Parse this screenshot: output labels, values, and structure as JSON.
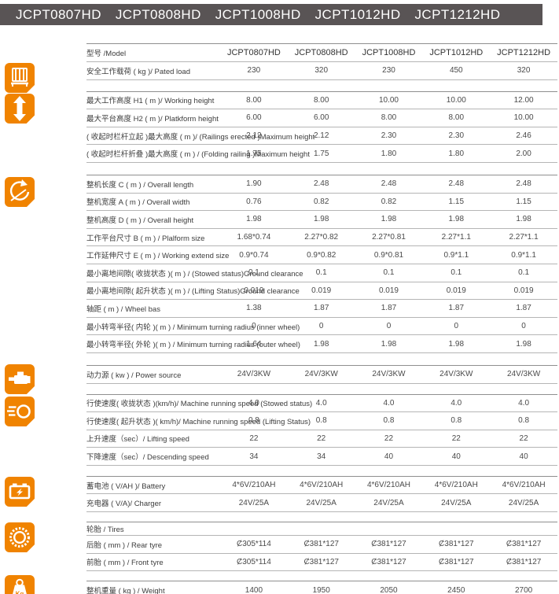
{
  "colors": {
    "accent_orange": "#F08300",
    "topbar_bg": "#595455",
    "line_gray": "#b5b5b5"
  },
  "top_bar": {
    "models": [
      "JCPT0807HD",
      "JCPT0808HD",
      "JCPT1008HD",
      "JCPT1012HD",
      "JCPT1212HD"
    ]
  },
  "table": {
    "sections": [
      {
        "icon": "platform-load-icon",
        "rows": [
          {
            "kind": "model",
            "label": "型号 /Model",
            "values": [
              "JCPT0807HD",
              "JCPT0808HD",
              "JCPT1008HD",
              "JCPT1012HD",
              "JCPT1212HD"
            ]
          },
          {
            "label": "安全工作载荷 ( kg )/ Pated load",
            "values": [
              "230",
              "320",
              "230",
              "450",
              "320"
            ]
          }
        ]
      },
      {
        "icon": "height-range-icon",
        "rows": [
          {
            "label": "最大工作高度 H1 ( m )/ Working height",
            "values": [
              "8.00",
              "8.00",
              "10.00",
              "10.00",
              "12.00"
            ]
          },
          {
            "label": "最大平台高度 H2 ( m )/ Platkform height",
            "values": [
              "6.00",
              "6.00",
              "8.00",
              "8.00",
              "10.00"
            ]
          },
          {
            "label": "( 收起时栏杆立起 )最大高度 ( m )/ (Railings erected )Maximum height",
            "values": [
              "2.12",
              "2.12",
              "2.30",
              "2.30",
              "2.46"
            ]
          },
          {
            "label": "( 收起时栏杆折叠 )最大高度 ( m ) / (Folding railing )Maximum height",
            "values": [
              "1.75",
              "1.75",
              "1.80",
              "1.80",
              "2.00"
            ]
          }
        ]
      },
      {
        "icon": "turning-radius-icon",
        "rows": [
          {
            "label": "整机长度 C ( m ) / Overall length",
            "values": [
              "1.90",
              "2.48",
              "2.48",
              "2.48",
              "2.48"
            ]
          },
          {
            "label": "整机宽度 A  ( m ) / Overall width",
            "values": [
              "0.76",
              "0.82",
              "0.82",
              "1.15",
              "1.15"
            ]
          },
          {
            "label": "整机高度 D ( m ) / Overall height",
            "values": [
              "1.98",
              "1.98",
              "1.98",
              "1.98",
              "1.98"
            ]
          },
          {
            "label": "工作平台尺寸 B ( m ) / Plalform size",
            "values": [
              "1.68*0.74",
              "2.27*0.82",
              "2.27*0.81",
              "2.27*1.1",
              "2.27*1.1"
            ]
          },
          {
            "label": "工作延伸尺寸 E ( m ) / Working extend size",
            "values": [
              "0.9*0.74",
              "0.9*0.82",
              "0.9*0.81",
              "0.9*1.1",
              "0.9*1.1"
            ]
          },
          {
            "label": "最小离地间隙( 收拢状态 )( m ) / (Stowed status)Ground clearance",
            "values": [
              "0.1",
              "0.1",
              "0.1",
              "0.1",
              "0.1"
            ]
          },
          {
            "label": "最小离地间隙( 起升状态 )( m ) / (Lifting Status)Ground clearance",
            "values": [
              "0.019",
              "0.019",
              "0.019",
              "0.019",
              "0.019"
            ]
          },
          {
            "label": "轴距 ( m ) / Wheel bas",
            "values": [
              "1.38",
              "1.87",
              "1.87",
              "1.87",
              "1.87"
            ]
          },
          {
            "label": "最小转弯半径( 内轮 )( m ) / Minimum turning radius (inner wheel)",
            "values": [
              "0",
              "0",
              "0",
              "0",
              "0"
            ]
          },
          {
            "label": "最小转弯半径( 外轮 )( m ) / Minimum turning radius (outer wheel)",
            "values": [
              "1.64",
              "1.98",
              "1.98",
              "1.98",
              "1.98"
            ]
          }
        ]
      },
      {
        "icon": "power-source-icon",
        "rows": [
          {
            "label": "动力源 ( kw ) / Power source",
            "values": [
              "24V/3KW",
              "24V/3KW",
              "24V/3KW",
              "24V/3KW",
              "24V/3KW"
            ]
          }
        ]
      },
      {
        "icon": "speed-icon",
        "rows": [
          {
            "label": "行使速度( 收拢状态 )(km/h)/ Machine running speed (Stowed status)",
            "values": [
              "4.0",
              "4.0",
              "4.0",
              "4.0",
              "4.0"
            ]
          },
          {
            "label": "行使速度( 起升状态 )( km/h)/ Machine running speed (Lifting Status)",
            "values": [
              "0.8",
              "0.8",
              "0.8",
              "0.8",
              "0.8"
            ]
          },
          {
            "label": "上升速度（sec）/ Lifting speed",
            "values": [
              "22",
              "22",
              "22",
              "22",
              "22"
            ]
          },
          {
            "label": "下降速度（sec）/ Descending speed",
            "values": [
              "34",
              "34",
              "40",
              "40",
              "40"
            ]
          }
        ]
      },
      {
        "icon": "battery-icon",
        "rows": [
          {
            "label": "蓄电池 ( V/AH )/ Battery",
            "values": [
              "4*6V/210AH",
              "4*6V/210AH",
              "4*6V/210AH",
              "4*6V/210AH",
              "4*6V/210AH"
            ]
          },
          {
            "label": "充电器 ( V/A)/ Charger",
            "values": [
              "24V/25A",
              "24V/25A",
              "24V/25A",
              "24V/25A",
              "24V/25A"
            ]
          }
        ]
      },
      {
        "icon": "tire-icon",
        "rows": [
          {
            "kind": "span",
            "label": "轮胎 / Tires",
            "values": null
          },
          {
            "label": "后胎 ( mm ) / Rear tyre",
            "values": [
              "Ȼ305*114",
              "Ȼ381*127",
              "Ȼ381*127",
              "Ȼ381*127",
              "Ȼ381*127"
            ]
          },
          {
            "label": "前胎 ( mm ) / Front tyre",
            "values": [
              "Ȼ305*114",
              "Ȼ381*127",
              "Ȼ381*127",
              "Ȼ381*127",
              "Ȼ381*127"
            ]
          }
        ]
      },
      {
        "icon": "weight-icon",
        "rows": [
          {
            "label": "整机重量 ( kg ) / Weight",
            "values": [
              "1400",
              "1950",
              "2050",
              "2450",
              "2700"
            ]
          }
        ]
      }
    ]
  }
}
